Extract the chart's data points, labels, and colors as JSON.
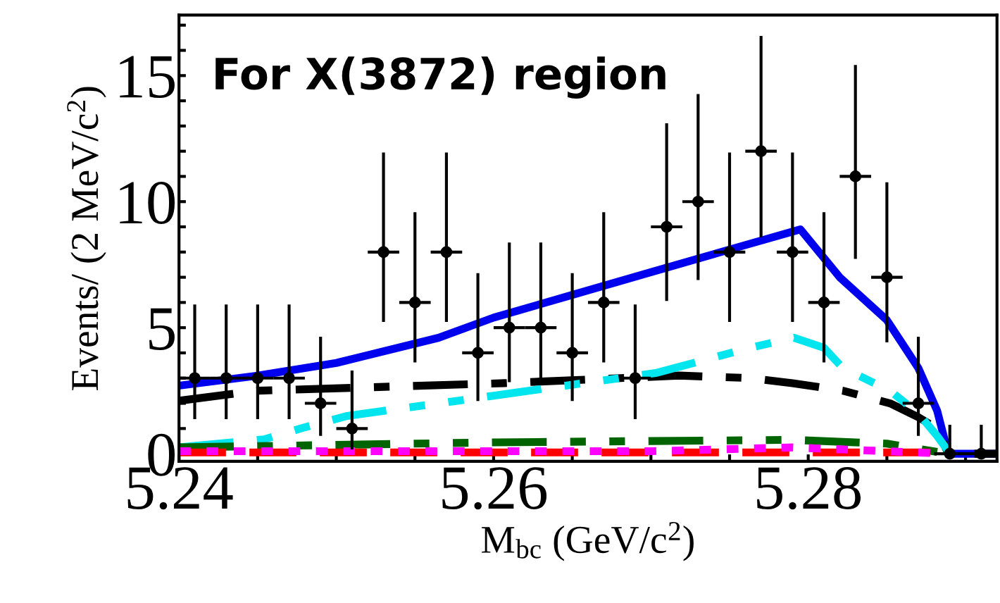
{
  "chart_data": {
    "type": "line",
    "xlabel": "M$_{bc}$ (GeV/c$^{2}$)",
    "ylabel": "Events/ (2 MeV/c$^{2}$)",
    "annotations": [
      "For X(3872) region"
    ],
    "xlim": [
      5.24,
      5.292
    ],
    "xticks": [
      5.24,
      {
        "value": 5.245,
        "label": null
      },
      {
        "value": 5.25,
        "label": null
      },
      {
        "value": 5.255,
        "label": null
      },
      5.26,
      {
        "value": 5.265,
        "label": null
      },
      {
        "value": 5.27,
        "label": null
      },
      {
        "value": 5.275,
        "label": null
      },
      5.28,
      {
        "value": 5.285,
        "label": null
      },
      {
        "value": 5.29,
        "label": null
      }
    ],
    "ylim": [
      -0.3,
      17.4
    ],
    "yticks": [
      0,
      {
        "value": 1,
        "label": null
      },
      {
        "value": 2,
        "label": null
      },
      {
        "value": 3,
        "label": null
      },
      {
        "value": 4,
        "label": null
      },
      5,
      {
        "value": 6,
        "label": null
      },
      {
        "value": 7,
        "label": null
      },
      {
        "value": 8,
        "label": null
      },
      {
        "value": 9,
        "label": null
      },
      10,
      {
        "value": 11,
        "label": null
      },
      {
        "value": 12,
        "label": null
      },
      {
        "value": 13,
        "label": null
      },
      {
        "value": 14,
        "label": null
      },
      15,
      {
        "value": 16,
        "label": null
      },
      {
        "value": 17,
        "label": null
      }
    ],
    "grid": false,
    "legend": false,
    "series": [
      {
        "type": "line",
        "color": "#0000ee",
        "line_style": "solid",
        "x": [
          5.24,
          5.245,
          5.25,
          5.2565,
          5.26,
          5.265,
          5.27,
          5.275,
          5.2795,
          5.282,
          5.285,
          5.287,
          5.2882,
          5.2889,
          5.292
        ],
        "values": [
          2.7,
          3.1,
          3.6,
          4.6,
          5.4,
          6.3,
          7.2,
          8.1,
          8.9,
          7.0,
          5.3,
          3.4,
          1.7,
          0,
          0
        ]
      },
      {
        "type": "line",
        "color": "#000000",
        "line_style": "dashdot",
        "x": [
          5.24,
          5.245,
          5.2607,
          5.2718,
          5.2763,
          5.279,
          5.2822,
          5.2852,
          5.287,
          5.2882,
          5.2889,
          5.292
        ],
        "values": [
          2.1,
          2.5,
          2.8,
          3.1,
          3.0,
          2.8,
          2.5,
          2.0,
          1.45,
          1.0,
          0,
          0
        ]
      },
      {
        "type": "line",
        "color": "#00e5ee",
        "line_style": "dashdotdot",
        "x": [
          5.24,
          5.2454,
          5.248,
          5.2507,
          5.26,
          5.2703,
          5.2763,
          5.2791,
          5.281,
          5.2822,
          5.2852,
          5.287,
          5.2882,
          5.2889
        ],
        "values": [
          0.25,
          0.57,
          1.05,
          1.5,
          2.3,
          3.2,
          4.2,
          4.6,
          4.2,
          3.4,
          2.5,
          1.6,
          0.7,
          0.1
        ]
      },
      {
        "type": "line",
        "color": "#006400",
        "line_style": "dashdotdot",
        "x": [
          5.24,
          5.26,
          5.279,
          5.285,
          5.2889
        ],
        "values": [
          0.25,
          0.45,
          0.55,
          0.4,
          0
        ]
      },
      {
        "type": "line",
        "color": "#ff0000",
        "line_style": "dashed",
        "x": [
          5.24,
          5.288,
          5.2889
        ],
        "values": [
          0.05,
          0.05,
          0
        ]
      },
      {
        "type": "line",
        "color": "#ff00ff",
        "line_style": "dotted",
        "x": [
          5.24,
          5.27,
          5.279,
          5.285,
          5.2889
        ],
        "values": [
          0.1,
          0.1,
          0.25,
          0.1,
          0
        ]
      },
      {
        "type": "scatter",
        "color": "#000000",
        "marker": "circle",
        "x": [
          5.241,
          5.243,
          5.245,
          5.247,
          5.249,
          5.251,
          5.253,
          5.255,
          5.257,
          5.259,
          5.261,
          5.263,
          5.265,
          5.267,
          5.269,
          5.271,
          5.273,
          5.275,
          5.277,
          5.279,
          5.281,
          5.283,
          5.285,
          5.287,
          5.289,
          5.291
        ],
        "values": [
          3,
          3,
          3,
          3,
          2,
          1,
          8,
          6,
          8,
          4,
          5,
          5,
          4,
          6,
          3,
          9,
          10,
          8,
          12,
          8,
          6,
          11,
          7,
          2,
          0,
          0
        ],
        "errors": [
          [
            1.37,
            5.92
          ],
          [
            1.37,
            5.92
          ],
          [
            1.37,
            5.92
          ],
          [
            1.37,
            5.92
          ],
          [
            0.71,
            4.64
          ],
          [
            0.17,
            3.3
          ],
          [
            5.23,
            11.95
          ],
          [
            3.62,
            9.58
          ],
          [
            5.23,
            11.95
          ],
          [
            2.09,
            7.16
          ],
          [
            2.84,
            8.38
          ],
          [
            2.84,
            8.38
          ],
          [
            2.09,
            7.16
          ],
          [
            3.62,
            9.58
          ],
          [
            1.37,
            5.92
          ],
          [
            6.06,
            13.11
          ],
          [
            6.89,
            14.27
          ],
          [
            5.23,
            11.95
          ],
          [
            8.58,
            16.57
          ],
          [
            5.23,
            11.95
          ],
          [
            3.62,
            9.58
          ],
          [
            7.73,
            15.42
          ],
          [
            4.42,
            10.77
          ],
          [
            0.71,
            4.64
          ],
          [
            0,
            1.15
          ],
          [
            0,
            1.15
          ]
        ],
        "xerrors": [
          0.001,
          0.001,
          0.001,
          0.001,
          0.001,
          0.001,
          0.001,
          0.001,
          0.001,
          0.001,
          0.001,
          0.001,
          0.001,
          0.001,
          0.001,
          0.001,
          0.001,
          0.001,
          0.001,
          0.001,
          0.001,
          0.001,
          0.001,
          0.001,
          0.001,
          0.001
        ]
      }
    ]
  }
}
